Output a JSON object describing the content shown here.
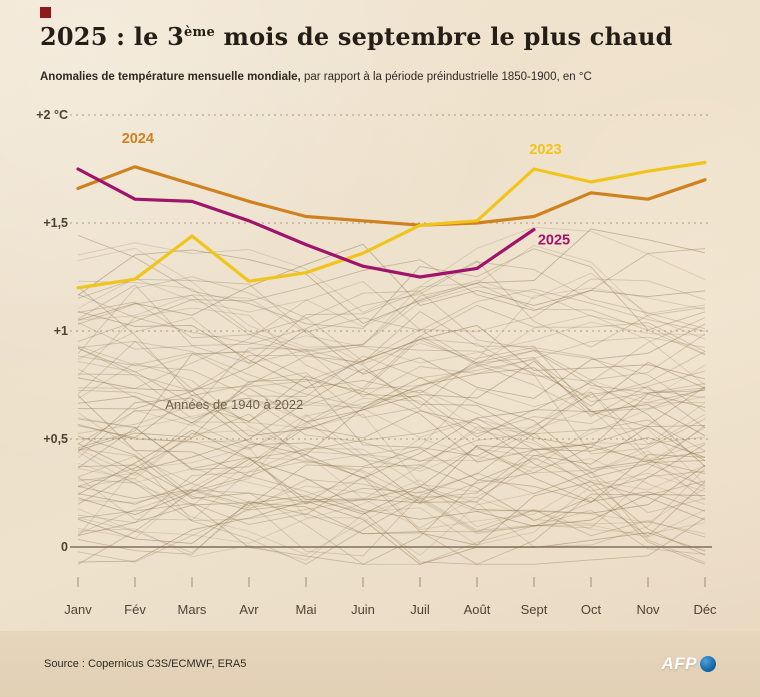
{
  "header": {
    "title_prefix": "2025 : le 3",
    "title_sup": "ème",
    "title_suffix": " mois de septembre le plus chaud",
    "subtitle_bold": "Anomalies de température mensuelle mondiale,",
    "subtitle_rest": " par rapport à la période préindustrielle 1850-1900, en °C"
  },
  "footer": {
    "source": "Source : Copernicus C3S/ECMWF, ERA5",
    "logo": "AFP"
  },
  "chart_data": {
    "type": "line",
    "title": "2025 : le 3ème mois de septembre le plus chaud",
    "categories": [
      "Janv",
      "Fév",
      "Mars",
      "Avr",
      "Mai",
      "Juin",
      "Juil",
      "Août",
      "Sept",
      "Oct",
      "Nov",
      "Déc"
    ],
    "ylim": [
      -0.12,
      2.1
    ],
    "yticks": [
      {
        "value": 2,
        "label": "+2 °C"
      },
      {
        "value": 1.5,
        "label": "+1,5"
      },
      {
        "value": 1,
        "label": "+1"
      },
      {
        "value": 0.5,
        "label": "+0,5"
      },
      {
        "value": 0,
        "label": "0"
      }
    ],
    "grid": "dashed horizontal lines at 0.5 °C intervals, solid zero line",
    "legend_position": "inline labels next to lines",
    "series": [
      {
        "name": "2024",
        "color": "#d0811f",
        "values": [
          1.66,
          1.76,
          1.68,
          1.6,
          1.53,
          1.51,
          1.49,
          1.5,
          1.53,
          1.64,
          1.61,
          1.7
        ],
        "label_at": {
          "month": 1.05,
          "value": 1.87
        }
      },
      {
        "name": "2023",
        "color": "#f0c419",
        "values": [
          1.2,
          1.24,
          1.44,
          1.23,
          1.27,
          1.36,
          1.49,
          1.51,
          1.75,
          1.69,
          1.74,
          1.78
        ],
        "label_at": {
          "month": 8.2,
          "value": 1.82
        }
      },
      {
        "name": "2025",
        "color": "#a0136b",
        "values": [
          1.75,
          1.61,
          1.6,
          1.51,
          1.4,
          1.3,
          1.25,
          1.29,
          1.47
        ],
        "label_at": {
          "month": 8.35,
          "value": 1.4
        }
      }
    ],
    "background_series": {
      "label": "Années de 1940 à 2022",
      "years_from": 1940,
      "years_to": 2022,
      "approx_range": [
        0,
        1.45
      ],
      "label_at": {
        "month": 1.53,
        "value": 0.64
      }
    }
  }
}
